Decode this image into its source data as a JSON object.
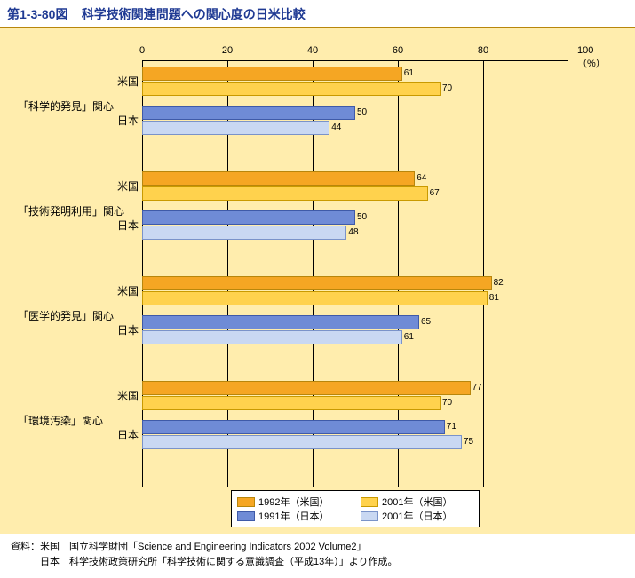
{
  "title_prefix": "第1-3-80図",
  "title_main": "科学技術関連問題への関心度の日米比較",
  "title_color": "#1f3a93",
  "title_border_color": "#b8860b",
  "chart_bg": "#ffedad",
  "axis": {
    "min": 0,
    "max": 100,
    "step": 20,
    "unit": "100（%）",
    "ticks": [
      "0",
      "20",
      "40",
      "60",
      "80"
    ]
  },
  "colors": {
    "us_1992": {
      "fill": "#f5a623",
      "border": "#b8860b"
    },
    "us_2001": {
      "fill": "#ffd24d",
      "border": "#c99a00"
    },
    "jp_1991": {
      "fill": "#6f8bd6",
      "border": "#3f5aa8"
    },
    "jp_2001": {
      "fill": "#c9d8f2",
      "border": "#7a93c9"
    }
  },
  "legend": {
    "us_1992": "1992年（米国）",
    "us_2001": "2001年（米国）",
    "jp_1991": "1991年（日本）",
    "jp_2001": "2001年（日本）"
  },
  "country_us": "米国",
  "country_jp": "日本",
  "groups": [
    {
      "label": "「科学的発見」関心",
      "us": [
        61,
        70
      ],
      "jp": [
        50,
        44
      ]
    },
    {
      "label": "「技術発明利用」関心",
      "us": [
        64,
        67
      ],
      "jp": [
        50,
        48
      ]
    },
    {
      "label": "「医学的発見」関心",
      "us": [
        82,
        81
      ],
      "jp": [
        65,
        61
      ]
    },
    {
      "label": "「環境汚染」関心",
      "us": [
        77,
        70
      ],
      "jp": [
        71,
        75
      ]
    }
  ],
  "source_line1": "資料：米国　国立科学財団「Science and Engineering Indicators 2002 Volume2」",
  "source_line2": "　　　日本　科学技術政策研究所「科学技術に関する意識調査（平成13年）」より作成。"
}
